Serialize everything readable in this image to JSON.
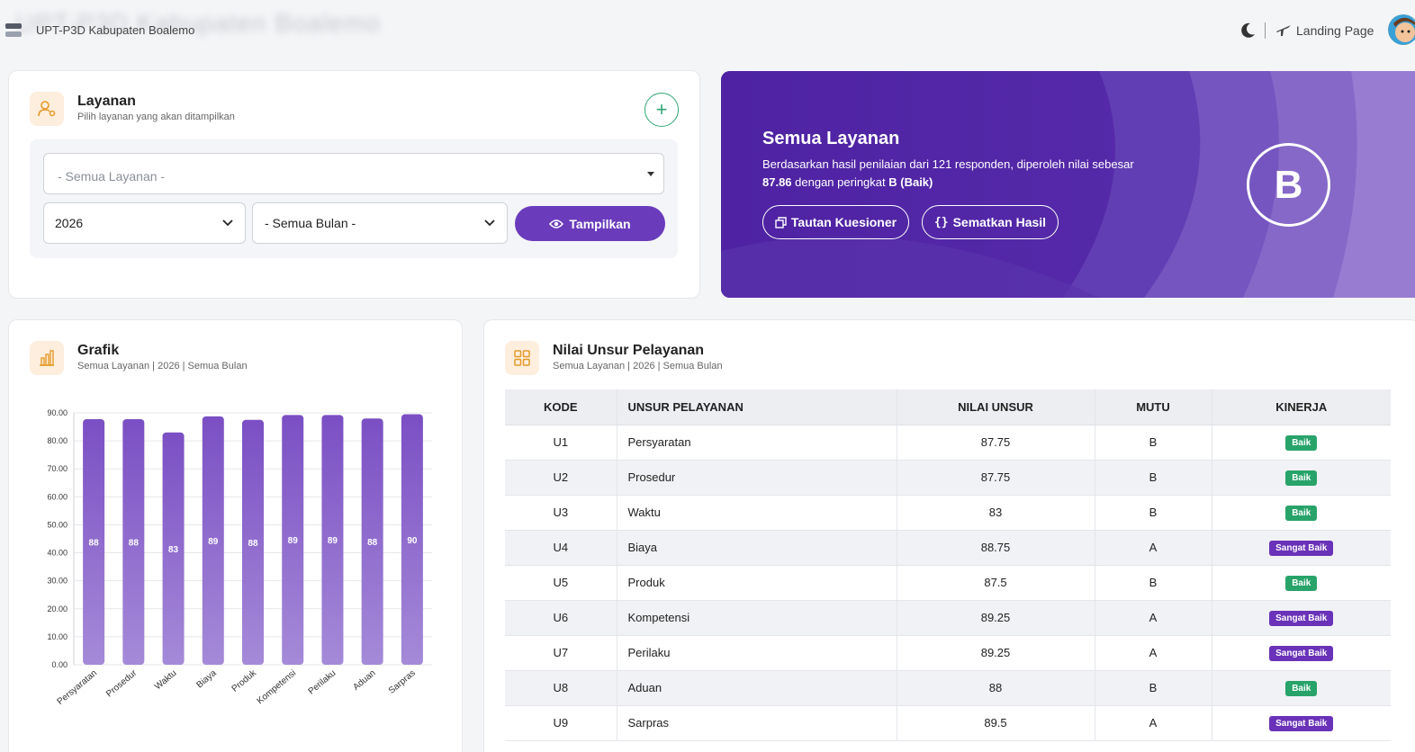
{
  "topbar": {
    "app_title": "UPT-P3D Kabupaten Boalemo",
    "blurred_title": "UPT-P3D Kabupaten Boalemo",
    "landing_page": "Landing Page",
    "icons": [
      "menu-icon",
      "moon-icon",
      "plane-icon",
      "avatar"
    ]
  },
  "layanan_card": {
    "title": "Layanan",
    "subtitle": "Pilih layanan yang akan ditampilkan",
    "service_select": "- Semua Layanan -",
    "year_select": "2026",
    "month_select": "- Semua Bulan -",
    "show_button": "Tampilkan",
    "icon": "user-gear-icon"
  },
  "hero": {
    "title": "Semua Layanan",
    "text_1": "Berdasarkan hasil penilaian dari 121 responden, diperoleh nilai sebesar ",
    "score": "87.86",
    "text_2": " dengan peringkat ",
    "rating": "B (Baik)",
    "btn_kuesioner": "Tautan Kuesioner",
    "btn_sematkan": "Sematkan Hasil",
    "grade": "B",
    "colors": {
      "start": "#4e22a2",
      "end": "#9b7fd0"
    }
  },
  "grafik": {
    "title": "Grafik",
    "subtitle": "Semua Layanan | 2026 | Semua Bulan",
    "icon": "bar-chart-icon"
  },
  "chart_data": {
    "type": "bar",
    "categories": [
      "Persyaratan",
      "Prosedur",
      "Waktu",
      "Biaya",
      "Produk",
      "Kompetensi",
      "Perilaku",
      "Aduan",
      "Sarpras"
    ],
    "values": [
      87.75,
      87.75,
      83,
      88.75,
      87.5,
      89.25,
      89.25,
      88,
      89.5
    ],
    "data_labels": [
      "88",
      "88",
      "83",
      "89",
      "88",
      "89",
      "89",
      "88",
      "90"
    ],
    "yticks": [
      "0.00",
      "10.00",
      "20.00",
      "30.00",
      "40.00",
      "50.00",
      "60.00",
      "70.00",
      "80.00",
      "90.00"
    ],
    "ylim": [
      0,
      90
    ],
    "grid": true,
    "title": "",
    "xlabel": "",
    "ylabel": "",
    "bar_color_top": "#7b4fc4",
    "bar_color_bottom": "#a58ad8"
  },
  "nilai": {
    "title": "Nilai Unsur Pelayanan",
    "subtitle": "Semua Layanan | 2026 | Semua Bulan",
    "icon": "grid-icon",
    "headers": [
      "KODE",
      "UNSUR PELAYANAN",
      "NILAI UNSUR",
      "MUTU",
      "KINERJA"
    ],
    "rows": [
      {
        "kode": "U1",
        "unsur": "Persyaratan",
        "nilai": "87.75",
        "mutu": "B",
        "kinerja": "Baik"
      },
      {
        "kode": "U2",
        "unsur": "Prosedur",
        "nilai": "87.75",
        "mutu": "B",
        "kinerja": "Baik"
      },
      {
        "kode": "U3",
        "unsur": "Waktu",
        "nilai": "83",
        "mutu": "B",
        "kinerja": "Baik"
      },
      {
        "kode": "U4",
        "unsur": "Biaya",
        "nilai": "88.75",
        "mutu": "A",
        "kinerja": "Sangat Baik"
      },
      {
        "kode": "U5",
        "unsur": "Produk",
        "nilai": "87.5",
        "mutu": "B",
        "kinerja": "Baik"
      },
      {
        "kode": "U6",
        "unsur": "Kompetensi",
        "nilai": "89.25",
        "mutu": "A",
        "kinerja": "Sangat Baik"
      },
      {
        "kode": "U7",
        "unsur": "Perilaku",
        "nilai": "89.25",
        "mutu": "A",
        "kinerja": "Sangat Baik"
      },
      {
        "kode": "U8",
        "unsur": "Aduan",
        "nilai": "88",
        "mutu": "B",
        "kinerja": "Baik"
      },
      {
        "kode": "U9",
        "unsur": "Sarpras",
        "nilai": "89.5",
        "mutu": "A",
        "kinerja": "Sangat Baik"
      }
    ]
  }
}
